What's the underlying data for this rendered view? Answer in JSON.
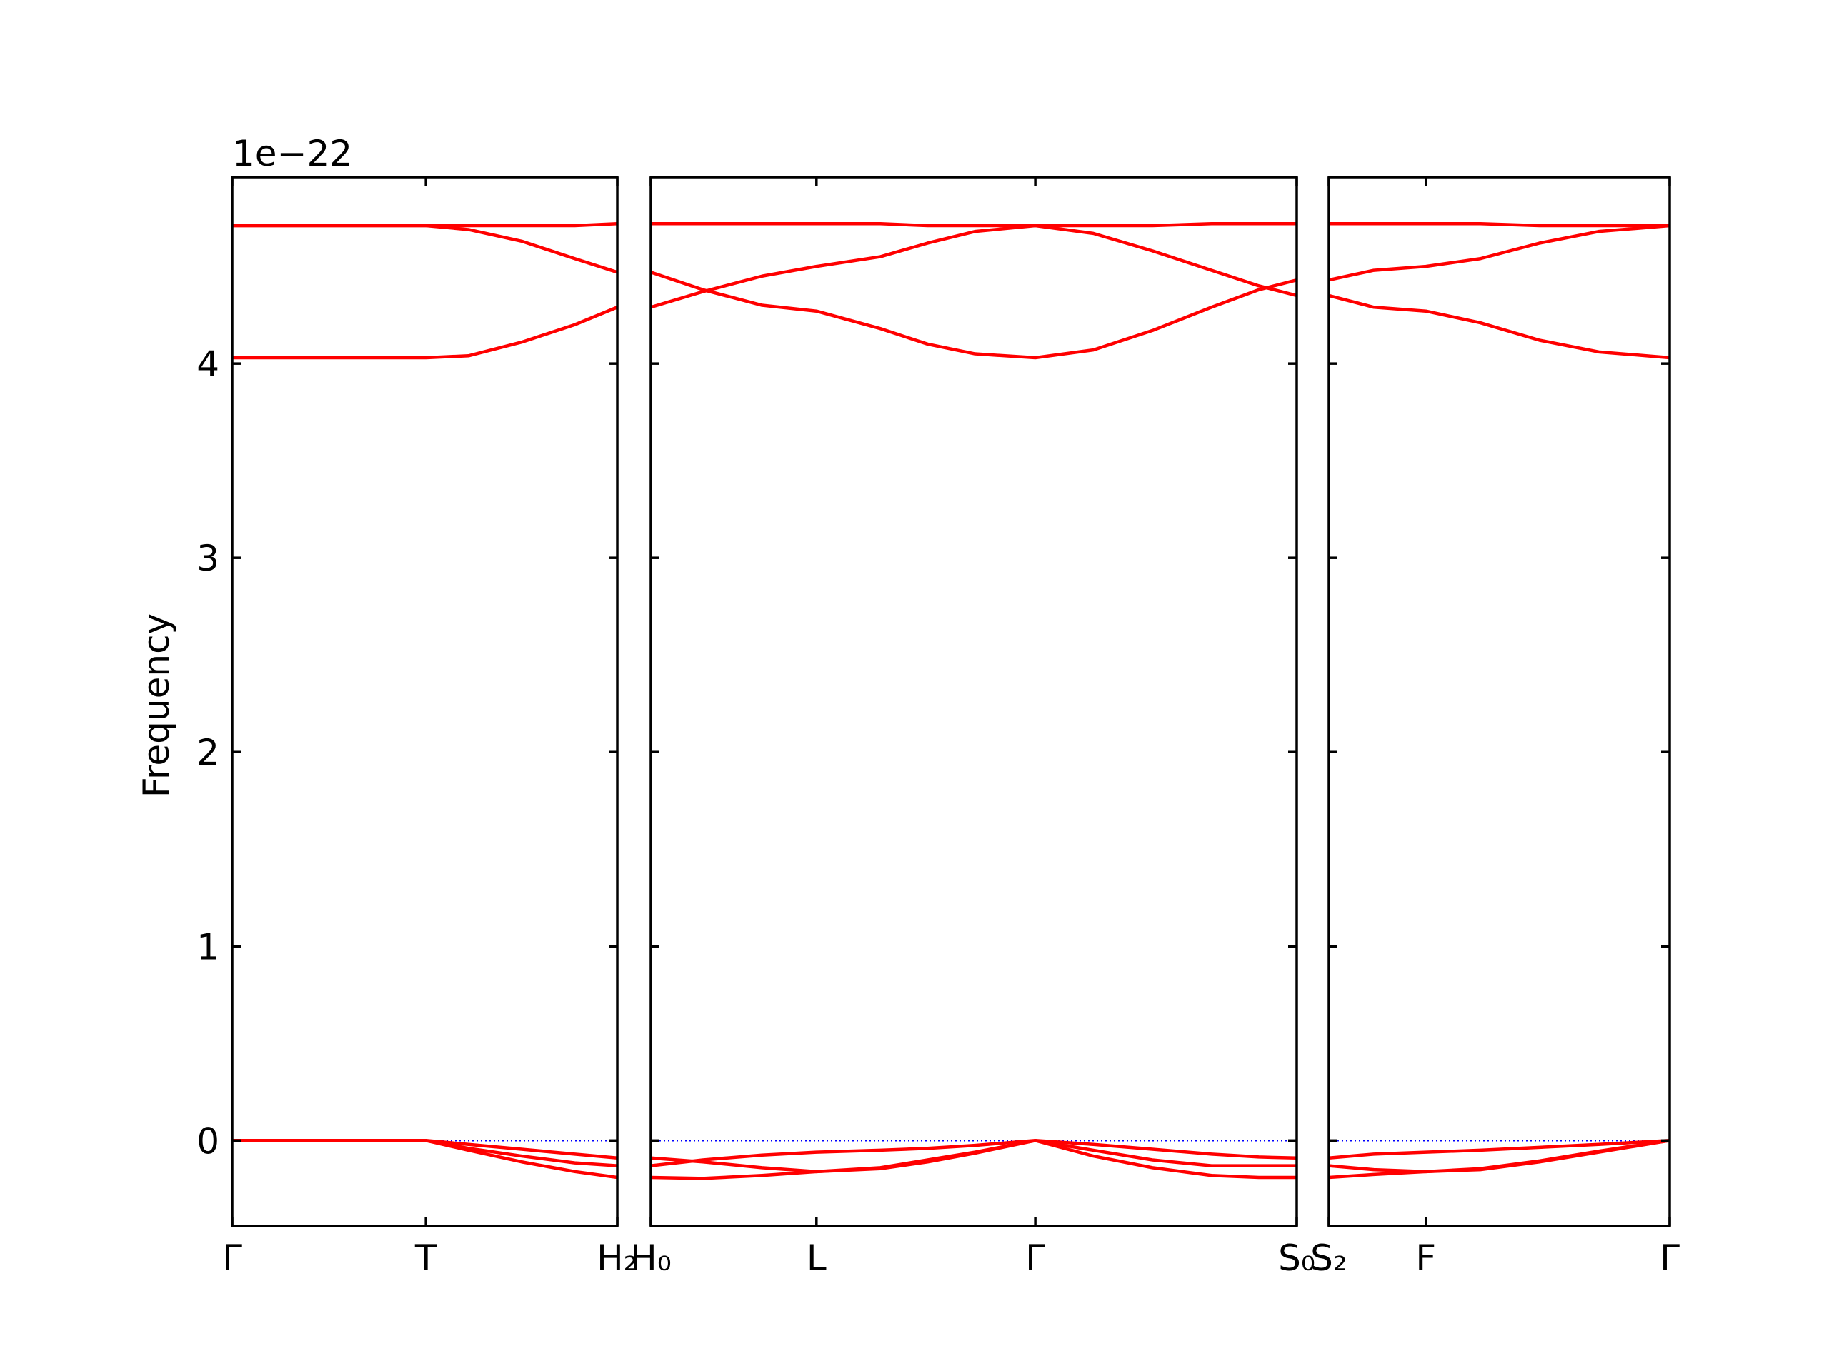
{
  "chart_data": [
    {
      "type": "line",
      "ylabel": "Frequency",
      "y_offset": "1e−22",
      "color": "#ff0000",
      "zero_line": true,
      "zero_line_color": "#0000ff",
      "xlim": [
        0,
        3.26
      ],
      "ylim": [
        -0.44,
        4.96
      ],
      "yticks": [
        0,
        1,
        2,
        3,
        4
      ],
      "xticks": [
        {
          "value": 0,
          "label": "Γ"
        },
        {
          "value": 1.64,
          "label": "T"
        },
        {
          "value": 3.26,
          "label": "H₂"
        }
      ],
      "x": [
        0,
        0.8,
        1.64,
        2.0,
        2.45,
        2.9,
        3.26
      ],
      "series": [
        {
          "values": [
            4.71,
            4.71,
            4.71,
            4.71,
            4.71,
            4.71,
            4.72
          ]
        },
        {
          "values": [
            4.71,
            4.71,
            4.71,
            4.69,
            4.63,
            4.54,
            4.47
          ]
        },
        {
          "values": [
            4.03,
            4.03,
            4.03,
            4.04,
            4.11,
            4.2,
            4.29
          ]
        },
        {
          "values": [
            0,
            0,
            0,
            -0.02,
            -0.045,
            -0.07,
            -0.09
          ]
        },
        {
          "values": [
            0,
            0,
            0,
            -0.04,
            -0.08,
            -0.115,
            -0.13
          ]
        },
        {
          "values": [
            0,
            0,
            0,
            -0.05,
            -0.11,
            -0.16,
            -0.19
          ]
        }
      ]
    },
    {
      "type": "line",
      "color": "#ff0000",
      "zero_line": true,
      "zero_line_color": "#0000ff",
      "xlim": [
        3.26,
        8.72
      ],
      "ylim": [
        -0.44,
        4.96
      ],
      "yticks": [
        0,
        1,
        2,
        3,
        4
      ],
      "xticks": [
        {
          "value": 3.26,
          "label": "H₀"
        },
        {
          "value": 4.66,
          "label": "L"
        },
        {
          "value": 6.51,
          "label": "Γ"
        },
        {
          "value": 8.72,
          "label": "S₀"
        }
      ],
      "x": [
        3.26,
        3.7,
        4.2,
        4.66,
        5.2,
        5.6,
        6.0,
        6.51,
        7.0,
        7.5,
        8.0,
        8.4,
        8.72
      ],
      "series": [
        {
          "values": [
            4.72,
            4.72,
            4.72,
            4.72,
            4.72,
            4.71,
            4.71,
            4.71,
            4.71,
            4.71,
            4.72,
            4.72,
            4.72
          ]
        },
        {
          "values": [
            4.29,
            4.37,
            4.45,
            4.5,
            4.55,
            4.62,
            4.68,
            4.71,
            4.67,
            4.58,
            4.48,
            4.4,
            4.35
          ]
        },
        {
          "values": [
            4.47,
            4.38,
            4.3,
            4.27,
            4.18,
            4.1,
            4.05,
            4.03,
            4.07,
            4.17,
            4.29,
            4.38,
            4.43
          ]
        },
        {
          "values": [
            -0.13,
            -0.1,
            -0.075,
            -0.06,
            -0.05,
            -0.04,
            -0.025,
            0,
            -0.02,
            -0.045,
            -0.07,
            -0.085,
            -0.09
          ]
        },
        {
          "values": [
            -0.09,
            -0.11,
            -0.14,
            -0.16,
            -0.14,
            -0.1,
            -0.06,
            0,
            -0.05,
            -0.1,
            -0.13,
            -0.13,
            -0.13
          ]
        },
        {
          "values": [
            -0.19,
            -0.195,
            -0.18,
            -0.16,
            -0.145,
            -0.11,
            -0.065,
            0,
            -0.08,
            -0.14,
            -0.18,
            -0.19,
            -0.19
          ]
        }
      ]
    },
    {
      "type": "line",
      "color": "#ff0000",
      "zero_line": true,
      "zero_line_color": "#0000ff",
      "xlim": [
        8.72,
        11.6
      ],
      "ylim": [
        -0.44,
        4.96
      ],
      "yticks": [
        0,
        1,
        2,
        3,
        4
      ],
      "xticks": [
        {
          "value": 8.72,
          "label": "S₂"
        },
        {
          "value": 9.54,
          "label": "F"
        },
        {
          "value": 11.6,
          "label": "Γ"
        }
      ],
      "x": [
        8.72,
        9.1,
        9.54,
        10.0,
        10.5,
        11.0,
        11.6
      ],
      "series": [
        {
          "values": [
            4.72,
            4.72,
            4.72,
            4.72,
            4.71,
            4.71,
            4.71
          ]
        },
        {
          "values": [
            4.43,
            4.48,
            4.5,
            4.54,
            4.62,
            4.68,
            4.71
          ]
        },
        {
          "values": [
            4.35,
            4.29,
            4.27,
            4.21,
            4.12,
            4.06,
            4.03
          ]
        },
        {
          "values": [
            -0.09,
            -0.07,
            -0.06,
            -0.05,
            -0.035,
            -0.02,
            0
          ]
        },
        {
          "values": [
            -0.13,
            -0.15,
            -0.16,
            -0.15,
            -0.11,
            -0.06,
            0
          ]
        },
        {
          "values": [
            -0.19,
            -0.175,
            -0.16,
            -0.145,
            -0.105,
            -0.055,
            0
          ]
        }
      ]
    }
  ]
}
